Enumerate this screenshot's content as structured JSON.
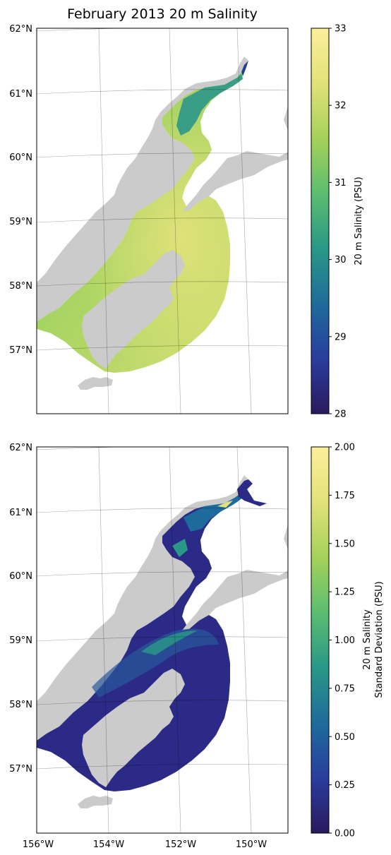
{
  "title": "February 2013 20 m Salinity",
  "lat_labels": [
    "62°N",
    "61°N",
    "60°N",
    "59°N",
    "58°N",
    "57°N"
  ],
  "lon_labels": [
    "156°W",
    "154°W",
    "152°W",
    "150°W"
  ],
  "panels": [
    {
      "name": "mean",
      "colorbar": {
        "label": "20 m Salinity (PSU)",
        "min": 28,
        "max": 33,
        "ticks": [
          "28",
          "29",
          "30",
          "31",
          "32",
          "33"
        ]
      }
    },
    {
      "name": "std",
      "colorbar": {
        "label_line1": "20 m Salinity",
        "label_line2": "Standard Deviation (PSU)",
        "min": 0,
        "max": 2,
        "ticks": [
          "0.00",
          "0.25",
          "0.50",
          "0.75",
          "1.00",
          "1.25",
          "1.50",
          "1.75",
          "2.00"
        ]
      }
    }
  ],
  "colors": {
    "land": "#cbcbcb",
    "frame": "#000000",
    "colormap": [
      "#2a1a5e",
      "#2a3c9c",
      "#1e6a9c",
      "#2a9886",
      "#5bbd70",
      "#a3d15a",
      "#e3e27a",
      "#fdee9b"
    ]
  }
}
